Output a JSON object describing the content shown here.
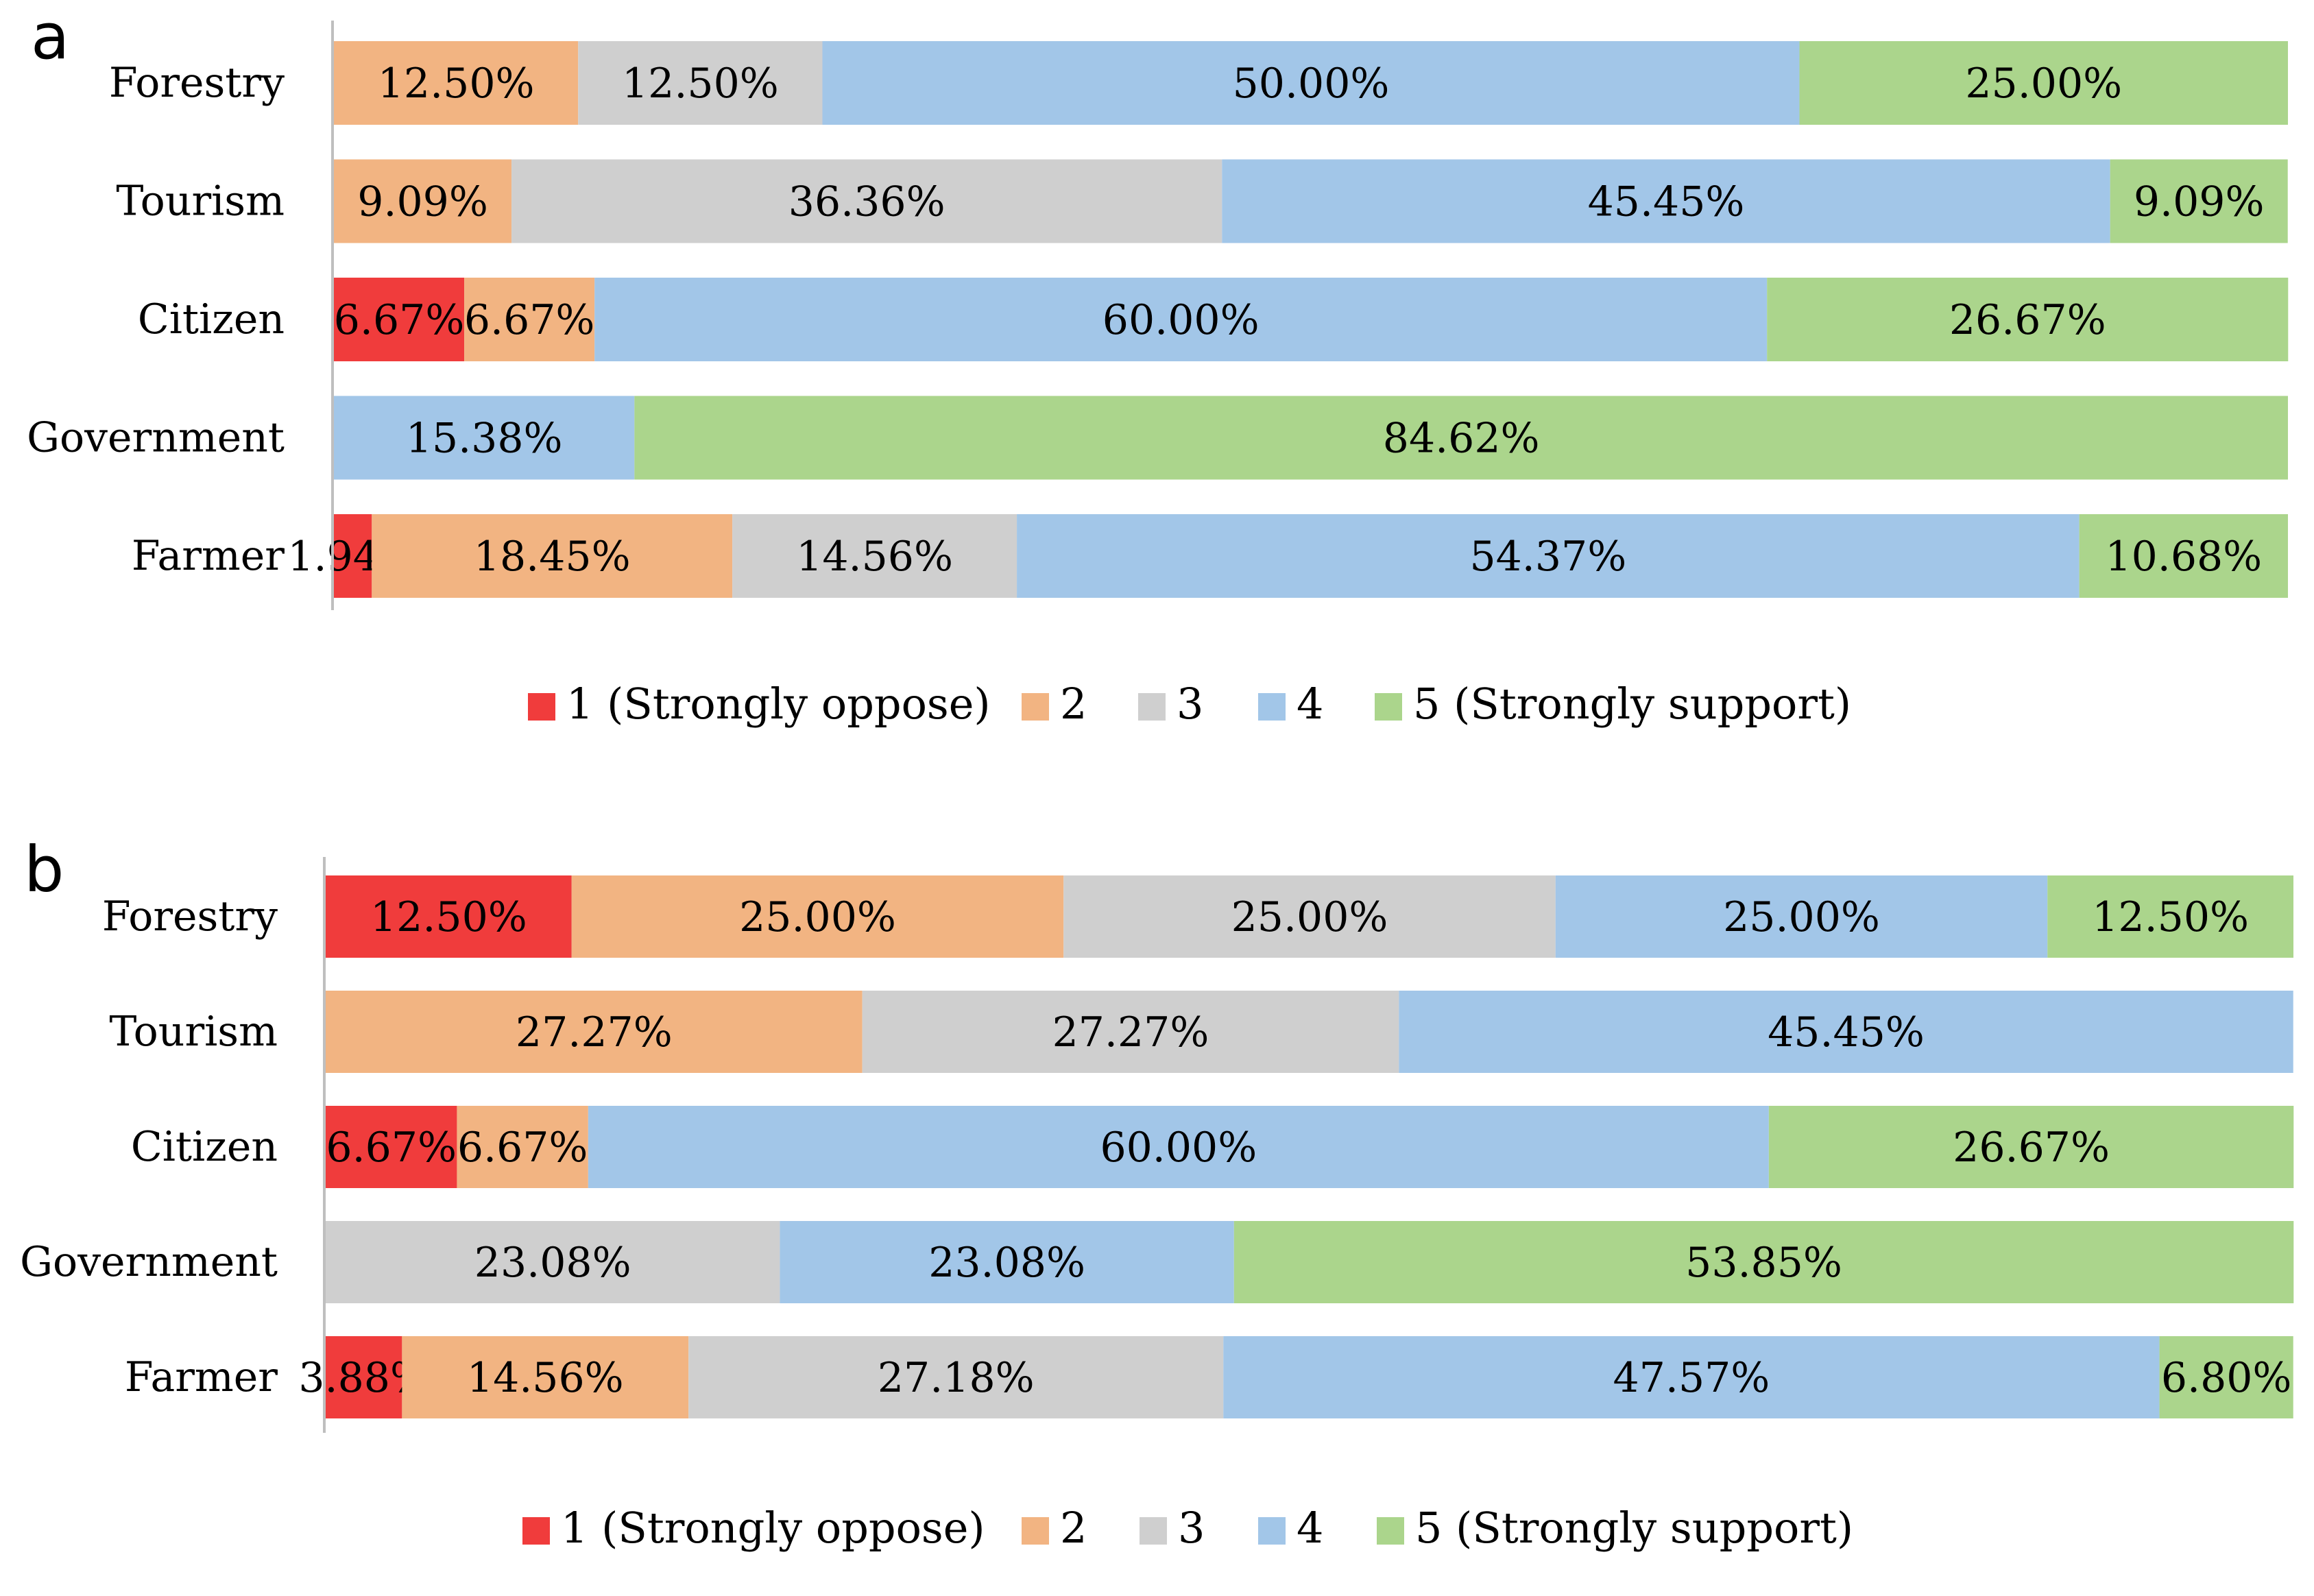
{
  "colors": {
    "1": "#f03c3c",
    "2": "#f2b482",
    "3": "#cfcfcf",
    "4": "#a2c6e8",
    "5": "#abd58c",
    "axis": "#bfbfbf",
    "text": "#000000"
  },
  "chart_data": [
    {
      "type": "bar",
      "stacked": true,
      "orientation": "horizontal",
      "percent": true,
      "panel": "a",
      "categories": [
        "Forestry",
        "Tourism",
        "Citizen",
        "Government",
        "Farmer"
      ],
      "series": [
        {
          "key": "1",
          "name": "1 (Strongly oppose)",
          "values": [
            0,
            0,
            6.67,
            0,
            1.94
          ]
        },
        {
          "key": "2",
          "name": "2",
          "values": [
            12.5,
            9.09,
            6.67,
            0,
            18.45
          ]
        },
        {
          "key": "3",
          "name": "3",
          "values": [
            12.5,
            36.36,
            0,
            0,
            14.56
          ]
        },
        {
          "key": "4",
          "name": "4",
          "values": [
            50.0,
            45.45,
            60.0,
            15.38,
            54.37
          ]
        },
        {
          "key": "5",
          "name": "5 (Strongly support)",
          "values": [
            25.0,
            9.09,
            26.67,
            84.62,
            10.68
          ]
        }
      ],
      "xlim": [
        0,
        100
      ],
      "legend": "bottom"
    },
    {
      "type": "bar",
      "stacked": true,
      "orientation": "horizontal",
      "percent": true,
      "panel": "b",
      "categories": [
        "Forestry",
        "Tourism",
        "Citizen",
        "Government",
        "Farmer"
      ],
      "series": [
        {
          "key": "1",
          "name": "1 (Strongly oppose)",
          "values": [
            12.5,
            0,
            6.67,
            0,
            3.88
          ]
        },
        {
          "key": "2",
          "name": "2",
          "values": [
            25.0,
            27.27,
            6.67,
            0,
            14.56
          ]
        },
        {
          "key": "3",
          "name": "3",
          "values": [
            25.0,
            27.27,
            0,
            23.08,
            27.18
          ]
        },
        {
          "key": "4",
          "name": "4",
          "values": [
            25.0,
            45.45,
            60.0,
            23.08,
            47.57
          ]
        },
        {
          "key": "5",
          "name": "5 (Strongly support)",
          "values": [
            12.5,
            0,
            26.67,
            53.85,
            6.8
          ]
        }
      ],
      "xlim": [
        0,
        100
      ],
      "legend": "bottom"
    }
  ]
}
